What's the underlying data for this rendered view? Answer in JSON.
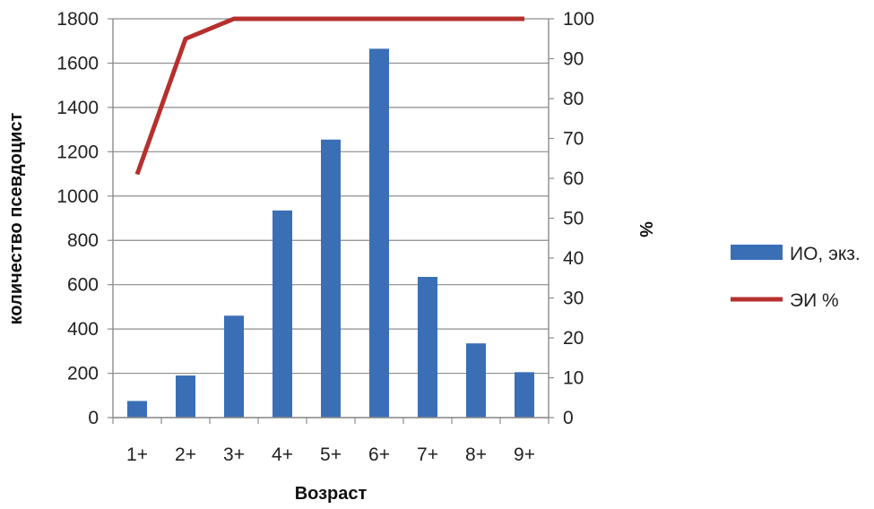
{
  "chart_data": {
    "type": "bar",
    "categories": [
      "1+",
      "2+",
      "3+",
      "4+",
      "5+",
      "6+",
      "7+",
      "8+",
      "9+"
    ],
    "xlabel": "Возраст",
    "ylabel": "количество псевдоцист",
    "y2label": "%",
    "ylim": [
      0,
      1800
    ],
    "y2lim": [
      0,
      100
    ],
    "yticks": [
      "0",
      "200",
      "400",
      "600",
      "800",
      "1000",
      "1200",
      "1400",
      "1600",
      "1800"
    ],
    "y2ticks": [
      "0",
      "10",
      "20",
      "30",
      "40",
      "50",
      "60",
      "70",
      "80",
      "90",
      "100"
    ],
    "grid": true,
    "legend_position": "right",
    "series": [
      {
        "name": "ИО, экз.",
        "type": "bar",
        "axis": "left",
        "color": "#3a6fb5",
        "values": [
          75,
          190,
          460,
          935,
          1255,
          1665,
          635,
          335,
          205
        ]
      },
      {
        "name": "ЭИ %",
        "type": "line",
        "axis": "right",
        "color": "#b5302e",
        "values": [
          61,
          95,
          100,
          100,
          100,
          100,
          100,
          100,
          100
        ]
      }
    ]
  }
}
